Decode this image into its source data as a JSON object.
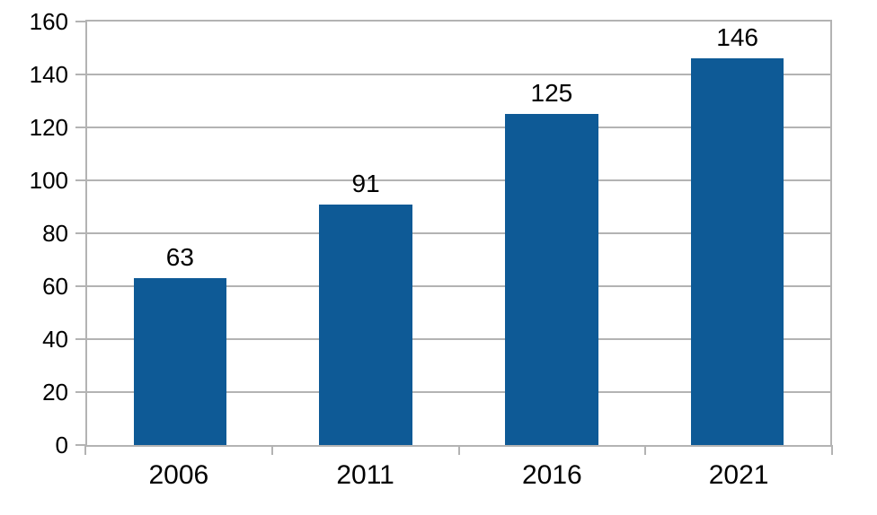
{
  "chart_data": {
    "type": "bar",
    "title": "",
    "xlabel": "",
    "ylabel": "",
    "categories": [
      "2006",
      "2011",
      "2016",
      "2021"
    ],
    "values": [
      63,
      91,
      125,
      146
    ],
    "data_labels": [
      "63",
      "91",
      "125",
      "146"
    ],
    "y_ticks": [
      "0",
      "20",
      "40",
      "60",
      "80",
      "100",
      "120",
      "140",
      "160"
    ],
    "y_tick_values": [
      0,
      20,
      40,
      60,
      80,
      100,
      120,
      140,
      160
    ],
    "ylim": [
      0,
      160
    ],
    "grid": "horizontal",
    "legend": "none",
    "colors": {
      "bar": "#0e5a96",
      "grid": "#b3b3b3",
      "axis": "#b3b3b3",
      "text": "#000000",
      "background": "#ffffff"
    }
  }
}
